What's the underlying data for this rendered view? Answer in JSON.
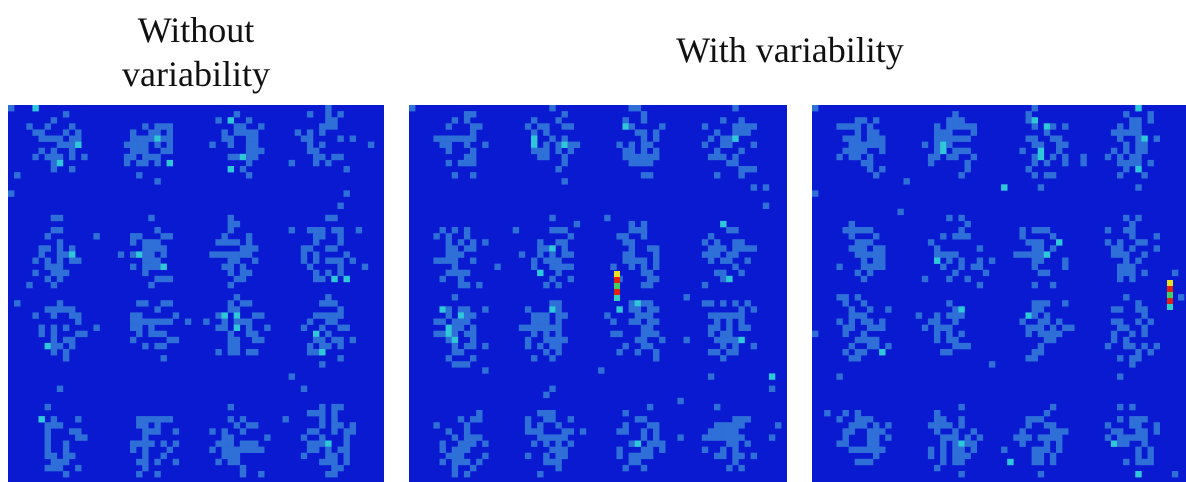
{
  "header": {
    "left_title": "Without variability",
    "right_title": "With variability"
  }
}
